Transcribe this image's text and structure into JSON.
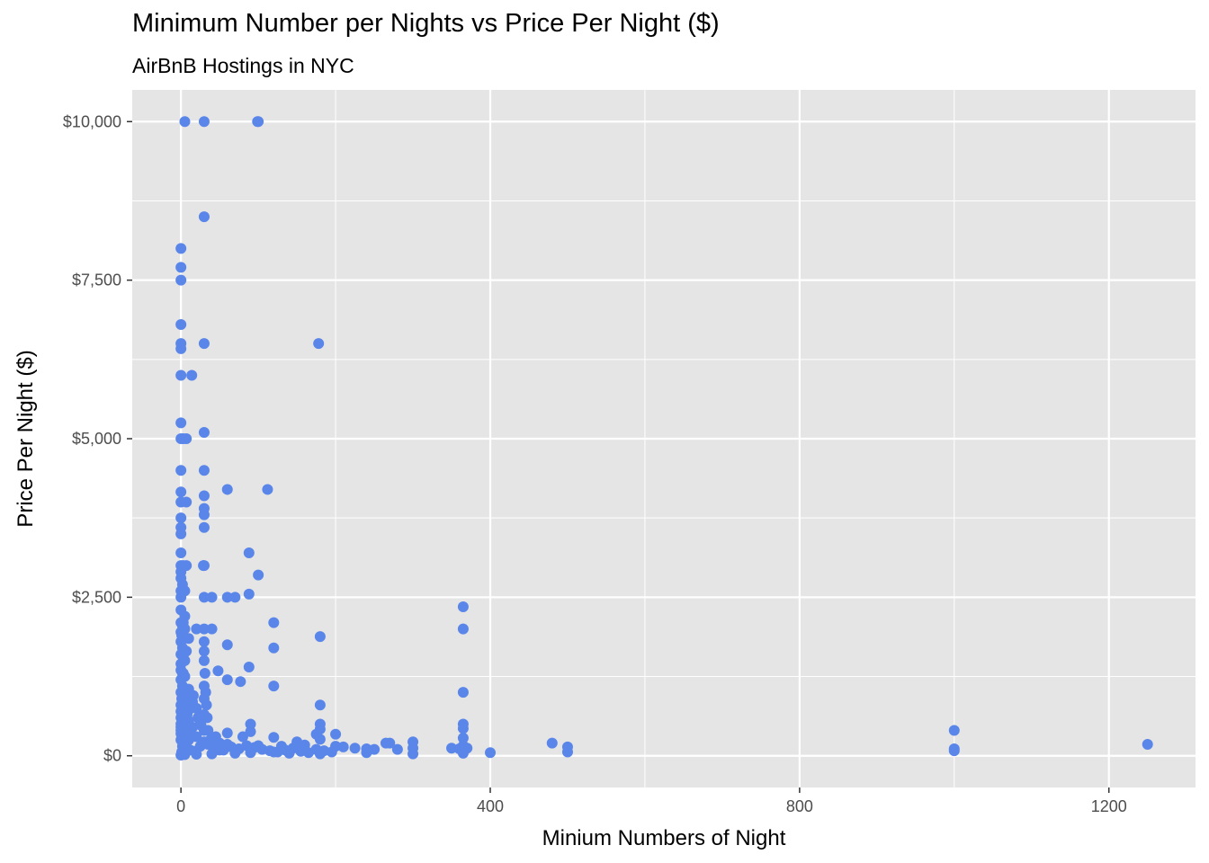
{
  "chart_data": {
    "type": "scatter",
    "title": "Minimum Number per Nights vs Price Per Night ($)",
    "subtitle": "AirBnB Hostings in NYC",
    "xlabel": "Minium Numbers of Night",
    "ylabel": "Price Per Night ($)",
    "xlim": [
      -63,
      1312
    ],
    "ylim": [
      -500,
      10500
    ],
    "xticks": [
      0,
      400,
      800,
      1200
    ],
    "xtick_labels": [
      "0",
      "400",
      "800",
      "1200"
    ],
    "yticks": [
      0,
      2500,
      5000,
      7500,
      10000
    ],
    "ytick_labels": [
      "$0",
      "$2,500",
      "$5,000",
      "$7,500",
      "$10,000"
    ],
    "grid": true,
    "panel_background": "#e5e5e5",
    "grid_color": "#ffffff",
    "point_color": "#5a86ea",
    "points": [
      [
        5,
        10000
      ],
      [
        30,
        10000
      ],
      [
        99,
        10000
      ],
      [
        100,
        10000
      ],
      [
        30,
        8500
      ],
      [
        0,
        8000
      ],
      [
        0,
        7703
      ],
      [
        0,
        7500
      ],
      [
        0,
        6800
      ],
      [
        0,
        6500
      ],
      [
        0,
        6419
      ],
      [
        30,
        6500
      ],
      [
        178,
        6500
      ],
      [
        0,
        6000
      ],
      [
        14,
        6000
      ],
      [
        0,
        5250
      ],
      [
        0,
        5000
      ],
      [
        3,
        5000
      ],
      [
        7,
        5000
      ],
      [
        30,
        5100
      ],
      [
        0,
        4500
      ],
      [
        30,
        4500
      ],
      [
        60,
        4200
      ],
      [
        112,
        4200
      ],
      [
        0,
        4160
      ],
      [
        30,
        4100
      ],
      [
        0,
        4000
      ],
      [
        7,
        4000
      ],
      [
        30,
        3900
      ],
      [
        30,
        3800
      ],
      [
        0,
        3750
      ],
      [
        0,
        3600
      ],
      [
        0,
        3500
      ],
      [
        30,
        3600
      ],
      [
        0,
        3200
      ],
      [
        88,
        3200
      ],
      [
        0,
        3000
      ],
      [
        3,
        3000
      ],
      [
        7,
        3000
      ],
      [
        30,
        3000
      ],
      [
        29,
        3000
      ],
      [
        0,
        2900
      ],
      [
        0,
        2800
      ],
      [
        2,
        2700
      ],
      [
        100,
        2850
      ],
      [
        0,
        2600
      ],
      [
        5,
        2600
      ],
      [
        0,
        2500
      ],
      [
        30,
        2500
      ],
      [
        40,
        2500
      ],
      [
        60,
        2500
      ],
      [
        70,
        2500
      ],
      [
        88,
        2550
      ],
      [
        365,
        2350
      ],
      [
        0,
        2300
      ],
      [
        5,
        2200
      ],
      [
        120,
        2100
      ],
      [
        0,
        2100
      ],
      [
        3,
        2100
      ],
      [
        365,
        2000
      ],
      [
        20,
        2000
      ],
      [
        30,
        2000
      ],
      [
        40,
        2000
      ],
      [
        5,
        2000
      ],
      [
        0,
        1950
      ],
      [
        180,
        1880
      ],
      [
        10,
        1850
      ],
      [
        30,
        1800
      ],
      [
        0,
        1800
      ],
      [
        60,
        1750
      ],
      [
        120,
        1700
      ],
      [
        2,
        1700
      ],
      [
        7,
        1650
      ],
      [
        30,
        1650
      ],
      [
        0,
        1600
      ],
      [
        3,
        1550
      ],
      [
        30,
        1500
      ],
      [
        5,
        1500
      ],
      [
        0,
        1450
      ],
      [
        88,
        1400
      ],
      [
        0,
        1350
      ],
      [
        48,
        1340
      ],
      [
        2,
        1300
      ],
      [
        5,
        1250
      ],
      [
        0,
        1200
      ],
      [
        60,
        1200
      ],
      [
        77,
        1170
      ],
      [
        120,
        1100
      ],
      [
        30,
        1100
      ],
      [
        10,
        1050
      ],
      [
        365,
        1000
      ],
      [
        0,
        1000
      ],
      [
        3,
        950
      ],
      [
        30,
        900
      ],
      [
        7,
        900
      ],
      [
        15,
        850
      ],
      [
        180,
        800
      ],
      [
        0,
        800
      ],
      [
        20,
        750
      ],
      [
        3,
        700
      ],
      [
        30,
        650
      ],
      [
        0,
        600
      ],
      [
        5,
        600
      ],
      [
        10,
        550
      ],
      [
        25,
        550
      ],
      [
        0,
        500
      ],
      [
        365,
        500
      ],
      [
        180,
        500
      ],
      [
        90,
        500
      ],
      [
        0,
        450
      ],
      [
        15,
        450
      ],
      [
        365,
        430
      ],
      [
        180,
        420
      ],
      [
        1000,
        400
      ],
      [
        30,
        400
      ],
      [
        0,
        400
      ],
      [
        5,
        380
      ],
      [
        60,
        360
      ],
      [
        90,
        380
      ],
      [
        200,
        340
      ],
      [
        175,
        340
      ],
      [
        0,
        350
      ],
      [
        20,
        300
      ],
      [
        45,
        300
      ],
      [
        80,
        300
      ],
      [
        120,
        290
      ],
      [
        150,
        220
      ],
      [
        180,
        260
      ],
      [
        300,
        220
      ],
      [
        365,
        280
      ],
      [
        265,
        200
      ],
      [
        270,
        200
      ],
      [
        480,
        200
      ],
      [
        1250,
        180
      ],
      [
        500,
        140
      ],
      [
        0,
        250
      ],
      [
        10,
        250
      ],
      [
        30,
        220
      ],
      [
        50,
        200
      ],
      [
        60,
        180
      ],
      [
        100,
        160
      ],
      [
        130,
        150
      ],
      [
        160,
        170
      ],
      [
        200,
        150
      ],
      [
        210,
        140
      ],
      [
        225,
        120
      ],
      [
        240,
        110
      ],
      [
        250,
        100
      ],
      [
        280,
        100
      ],
      [
        300,
        120
      ],
      [
        350,
        120
      ],
      [
        360,
        110
      ],
      [
        370,
        120
      ],
      [
        1000,
        110
      ],
      [
        1000,
        80
      ],
      [
        500,
        60
      ],
      [
        400,
        50
      ],
      [
        240,
        50
      ],
      [
        300,
        30
      ],
      [
        365,
        40
      ],
      [
        180,
        30
      ],
      [
        140,
        40
      ],
      [
        120,
        60
      ],
      [
        90,
        50
      ],
      [
        70,
        40
      ],
      [
        40,
        30
      ],
      [
        20,
        25
      ],
      [
        5,
        20
      ],
      [
        0,
        10
      ],
      [
        2,
        150
      ],
      [
        3,
        100
      ],
      [
        1,
        60
      ],
      [
        4,
        300
      ],
      [
        6,
        200
      ],
      [
        8,
        120
      ],
      [
        12,
        90
      ],
      [
        18,
        70
      ],
      [
        25,
        150
      ],
      [
        35,
        180
      ],
      [
        45,
        120
      ],
      [
        55,
        90
      ],
      [
        65,
        140
      ],
      [
        75,
        110
      ],
      [
        85,
        160
      ],
      [
        95,
        130
      ],
      [
        105,
        100
      ],
      [
        115,
        80
      ],
      [
        125,
        60
      ],
      [
        135,
        90
      ],
      [
        145,
        120
      ],
      [
        155,
        70
      ],
      [
        165,
        50
      ],
      [
        175,
        100
      ],
      [
        185,
        80
      ],
      [
        195,
        60
      ],
      [
        0,
        700
      ],
      [
        1,
        900
      ],
      [
        2,
        1100
      ],
      [
        3,
        1300
      ],
      [
        4,
        1500
      ],
      [
        1,
        1900
      ],
      [
        2,
        2050
      ],
      [
        6,
        850
      ],
      [
        8,
        650
      ],
      [
        9,
        450
      ],
      [
        11,
        350
      ],
      [
        13,
        750
      ],
      [
        16,
        950
      ],
      [
        22,
        600
      ],
      [
        26,
        480
      ],
      [
        31,
        1300
      ],
      [
        32,
        1000
      ],
      [
        33,
        800
      ],
      [
        34,
        600
      ],
      [
        35,
        400
      ],
      [
        38,
        250
      ],
      [
        42,
        150
      ],
      [
        50,
        90
      ],
      [
        365,
        70
      ],
      [
        365,
        160
      ]
    ]
  }
}
